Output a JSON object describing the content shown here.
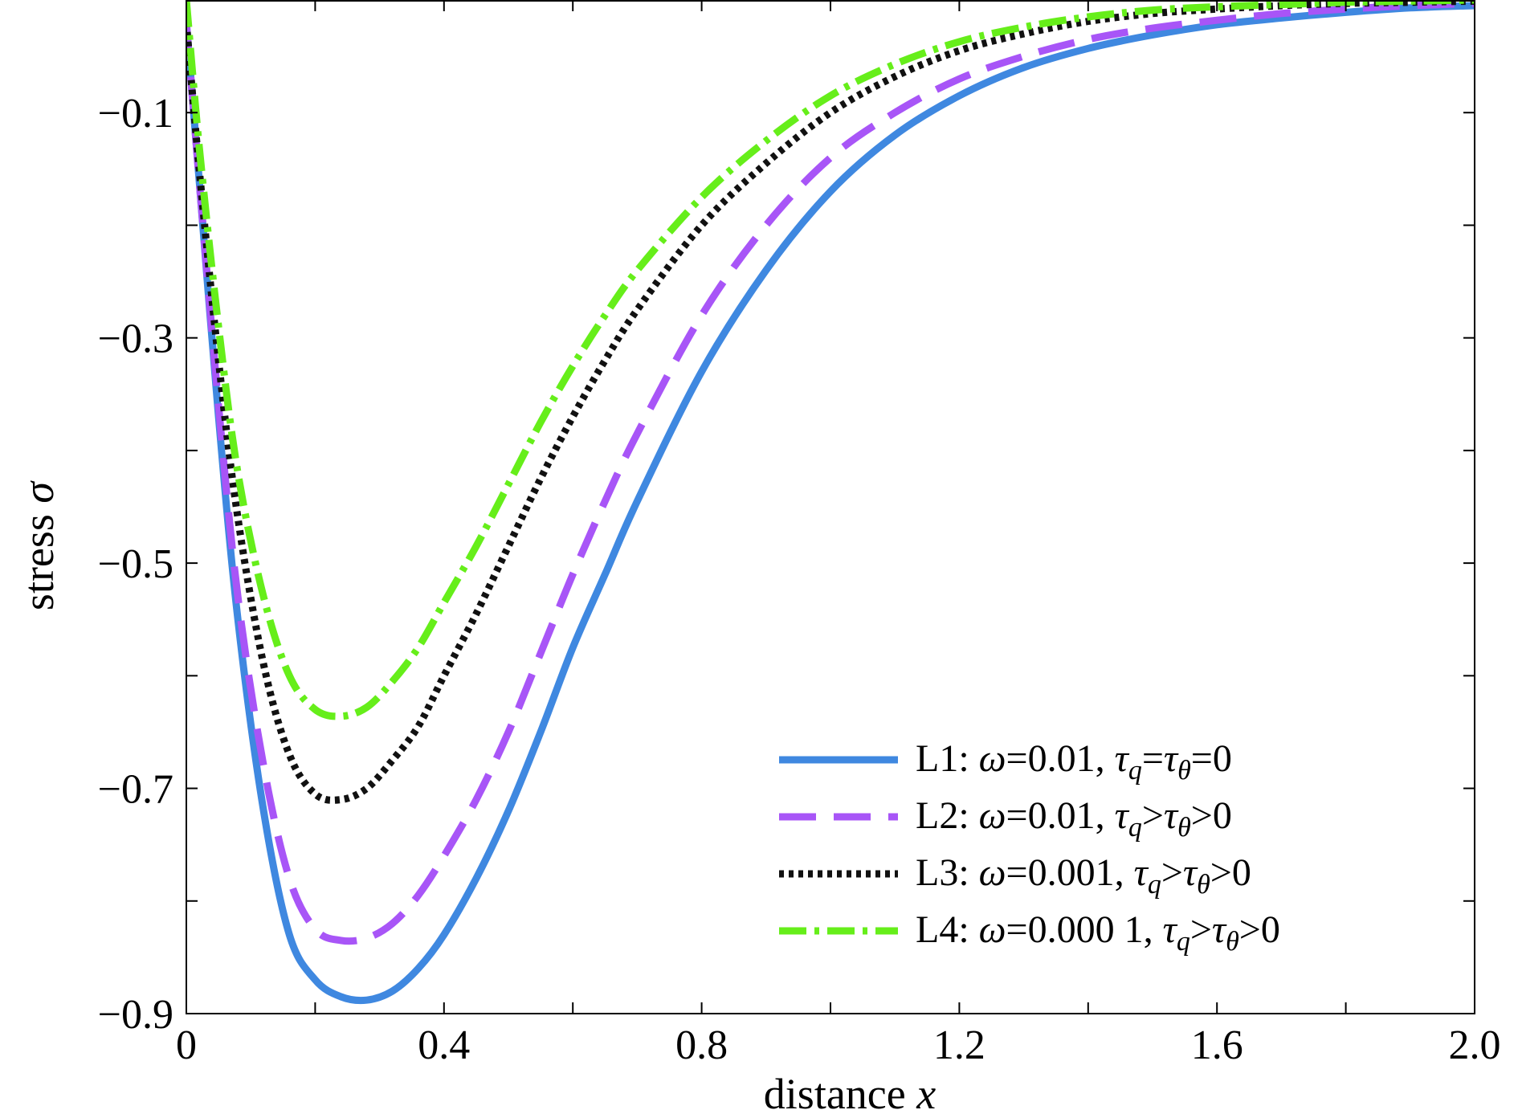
{
  "chart_data": {
    "type": "line",
    "title": "",
    "xlabel": {
      "text": "distance ",
      "var": "x"
    },
    "ylabel": {
      "text": "stress ",
      "var": "σ"
    },
    "xlim": [
      0,
      2.0
    ],
    "ylim": [
      -0.9,
      0
    ],
    "xticks": [
      0,
      0.2,
      0.4,
      0.6,
      0.8,
      1.0,
      1.2,
      1.4,
      1.6,
      1.8,
      2.0
    ],
    "xtick_labels": [
      "0",
      "",
      "0.4",
      "",
      "0.8",
      "",
      "1.2",
      "",
      "1.6",
      "",
      "2.0"
    ],
    "yticks": [
      -0.9,
      -0.8,
      -0.7,
      -0.6,
      -0.5,
      -0.4,
      -0.3,
      -0.2,
      -0.1,
      0
    ],
    "ytick_labels": [
      "−0.9",
      "",
      "−0.7",
      "",
      "−0.5",
      "",
      "−0.3",
      "",
      "−0.1",
      ""
    ],
    "grid": false,
    "legend_position": "bottom-right",
    "series": [
      {
        "name": "L1",
        "legend": {
          "label": "L1:",
          "omega": "0.01",
          "cond": "=",
          "tail": "=0"
        },
        "color": "#3f88e0",
        "dash": "",
        "x": [
          0,
          0.02,
          0.05,
          0.08,
          0.12,
          0.16,
          0.2,
          0.24,
          0.28,
          0.32,
          0.36,
          0.4,
          0.45,
          0.5,
          0.55,
          0.6,
          0.65,
          0.7,
          0.8,
          0.9,
          1.0,
          1.1,
          1.2,
          1.3,
          1.4,
          1.5,
          1.6,
          1.7,
          1.8,
          1.9,
          2.0
        ],
        "y": [
          -0.02,
          -0.16,
          -0.37,
          -0.55,
          -0.72,
          -0.83,
          -0.87,
          -0.885,
          -0.888,
          -0.88,
          -0.86,
          -0.83,
          -0.78,
          -0.72,
          -0.65,
          -0.575,
          -0.51,
          -0.445,
          -0.33,
          -0.24,
          -0.17,
          -0.12,
          -0.085,
          -0.06,
          -0.043,
          -0.031,
          -0.022,
          -0.016,
          -0.011,
          -0.007,
          -0.005
        ]
      },
      {
        "name": "L2",
        "legend": {
          "label": "L2:",
          "omega": "0.01",
          "cond": ">",
          "tail": ">0"
        },
        "color": "#a855f7",
        "dash": "46 22",
        "x": [
          0,
          0.02,
          0.05,
          0.08,
          0.12,
          0.16,
          0.2,
          0.24,
          0.28,
          0.32,
          0.36,
          0.4,
          0.45,
          0.5,
          0.55,
          0.6,
          0.65,
          0.7,
          0.8,
          0.9,
          1.0,
          1.1,
          1.2,
          1.3,
          1.4,
          1.5,
          1.6,
          1.7,
          1.8,
          1.9,
          2.0
        ],
        "y": [
          -0.02,
          -0.16,
          -0.36,
          -0.53,
          -0.68,
          -0.78,
          -0.825,
          -0.835,
          -0.833,
          -0.82,
          -0.795,
          -0.76,
          -0.71,
          -0.65,
          -0.58,
          -0.51,
          -0.445,
          -0.385,
          -0.28,
          -0.2,
          -0.14,
          -0.1,
          -0.07,
          -0.05,
          -0.035,
          -0.025,
          -0.018,
          -0.012,
          -0.008,
          -0.005,
          -0.003
        ]
      },
      {
        "name": "L3",
        "legend": {
          "label": "L3:",
          "omega": "0.001",
          "cond": ">",
          "tail": ">0"
        },
        "color": "#111111",
        "dash": "6 6",
        "x": [
          0,
          0.02,
          0.05,
          0.08,
          0.12,
          0.16,
          0.2,
          0.24,
          0.28,
          0.32,
          0.36,
          0.4,
          0.45,
          0.5,
          0.55,
          0.6,
          0.65,
          0.7,
          0.8,
          0.9,
          1.0,
          1.1,
          1.2,
          1.3,
          1.4,
          1.5,
          1.6,
          1.7,
          1.8,
          1.9,
          2.0
        ],
        "y": [
          -0.02,
          -0.15,
          -0.32,
          -0.46,
          -0.59,
          -0.67,
          -0.705,
          -0.71,
          -0.7,
          -0.675,
          -0.645,
          -0.6,
          -0.545,
          -0.485,
          -0.425,
          -0.37,
          -0.32,
          -0.275,
          -0.2,
          -0.145,
          -0.1,
          -0.068,
          -0.045,
          -0.03,
          -0.019,
          -0.012,
          -0.008,
          -0.005,
          -0.003,
          -0.002,
          -0.001
        ]
      },
      {
        "name": "L4",
        "legend": {
          "label": "L4:",
          "omega": "0.000 1",
          "cond": ">",
          "tail": ">0"
        },
        "color": "#66ee1a",
        "dash": "34 10 6 10",
        "x": [
          0,
          0.02,
          0.05,
          0.08,
          0.12,
          0.16,
          0.2,
          0.24,
          0.28,
          0.32,
          0.36,
          0.4,
          0.45,
          0.5,
          0.55,
          0.6,
          0.65,
          0.7,
          0.8,
          0.9,
          1.0,
          1.1,
          1.2,
          1.3,
          1.4,
          1.5,
          1.6,
          1.7,
          1.8,
          1.9,
          2.0
        ],
        "y": [
          0,
          -0.13,
          -0.29,
          -0.42,
          -0.53,
          -0.6,
          -0.63,
          -0.636,
          -0.628,
          -0.605,
          -0.575,
          -0.535,
          -0.485,
          -0.43,
          -0.375,
          -0.325,
          -0.28,
          -0.24,
          -0.175,
          -0.125,
          -0.085,
          -0.057,
          -0.037,
          -0.024,
          -0.015,
          -0.009,
          -0.006,
          -0.004,
          -0.002,
          -0.001,
          0
        ]
      }
    ]
  }
}
